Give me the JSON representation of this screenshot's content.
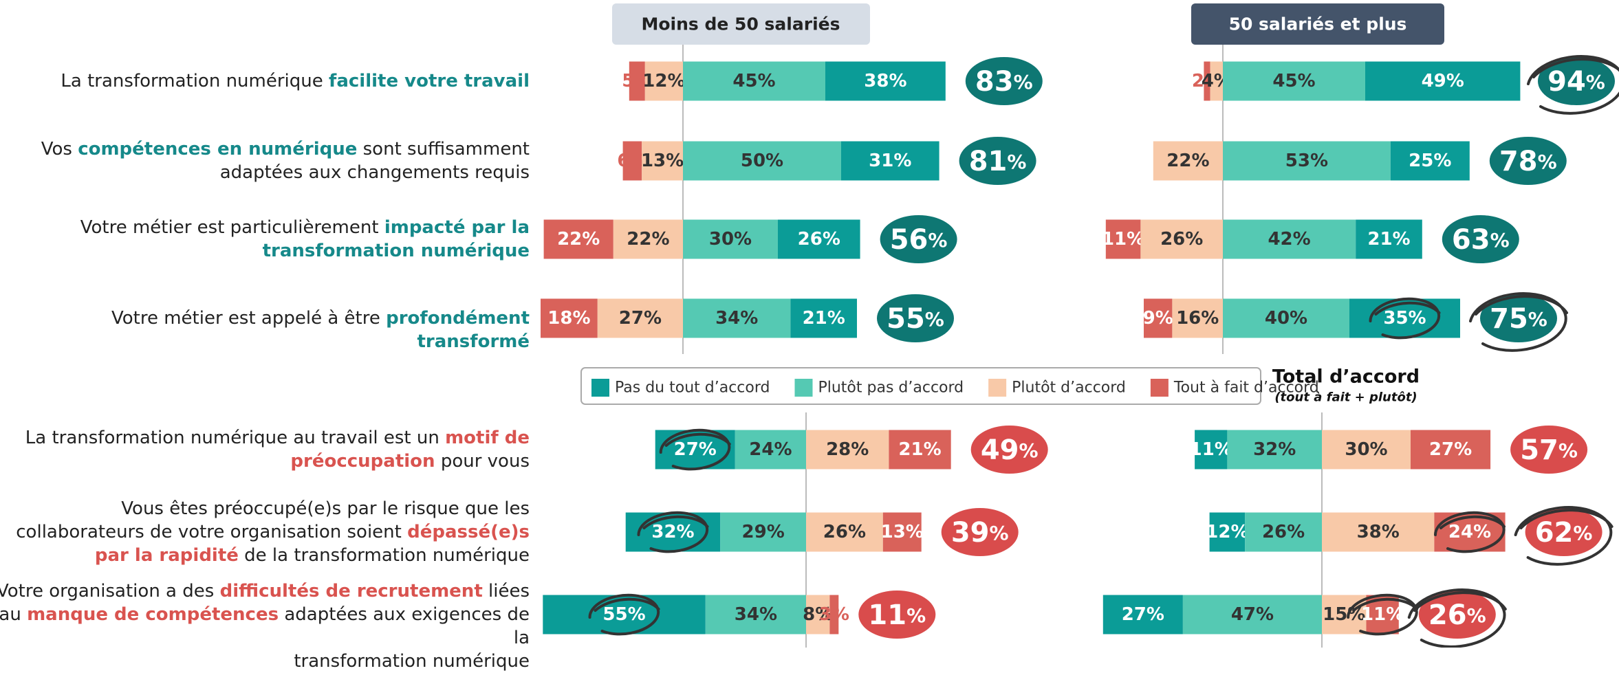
{
  "chart_data": {
    "type": "bar",
    "categories": [
      [
        [
          {
            "text": "La transformation numérique "
          },
          {
            "text": "facilite votre travail",
            "bold": true
          }
        ]
      ],
      [
        [
          {
            "text": "Vos "
          },
          {
            "text": "compétences en numérique",
            "bold": true
          },
          {
            "text": " sont suffisamment"
          }
        ],
        [
          {
            "text": "adaptées aux changements requis"
          }
        ]
      ],
      [
        [
          {
            "text": "Votre métier est particulièrement "
          },
          {
            "text": "impacté par la",
            "bold": true
          }
        ],
        [
          {
            "text": "transformation numérique",
            "bold": true
          }
        ]
      ],
      [
        [
          {
            "text": "Votre métier est appelé à être "
          },
          {
            "text": "profondément transformé",
            "bold": true
          }
        ]
      ],
      [
        [
          {
            "text": "La transformation numérique au travail est un "
          },
          {
            "text": "motif de",
            "bold": true
          }
        ],
        [
          {
            "text": "préoccupation",
            "bold": true
          },
          {
            "text": " pour vous"
          }
        ]
      ],
      [
        [
          {
            "text": "Vous êtes préoccupé(e)s par le risque que les"
          }
        ],
        [
          {
            "text": "collaborateurs de votre organisation soient "
          },
          {
            "text": "dépassé(e)s",
            "bold": true
          }
        ],
        [
          {
            "text": "par la rapidité",
            "bold": true
          },
          {
            "text": " de la transformation numérique"
          }
        ]
      ],
      [
        [
          {
            "text": "Votre organisation a des "
          },
          {
            "text": "difficultés de recrutement",
            "bold": true
          },
          {
            "text": " liées"
          }
        ],
        [
          {
            "text": "au "
          },
          {
            "text": "manque de compétences",
            "bold": true
          },
          {
            "text": " adaptées aux exigences de la"
          }
        ],
        [
          {
            "text": "transformation numérique"
          }
        ]
      ]
    ],
    "highlight_colors": [
      "#16898a",
      "#16898a",
      "#16898a",
      "#16898a",
      "#d9534f",
      "#d9534f",
      "#d9534f"
    ],
    "total_colors": [
      "#0e7773",
      "#0e7773",
      "#0e7773",
      "#0e7773",
      "#d94c4c",
      "#d94c4c",
      "#d94c4c"
    ],
    "reverse": [
      true,
      true,
      true,
      true,
      false,
      false,
      false
    ],
    "series": [
      {
        "name": "Pas du tout d’accord",
        "color": "#0b9c97"
      },
      {
        "name": "Plutôt pas d’accord",
        "color": "#55c9b3"
      },
      {
        "name": "Plutôt d’accord",
        "color": "#f8c9a8"
      },
      {
        "name": "Tout à fait d’accord",
        "color": "#d9625a"
      }
    ],
    "total_title": "Total d’accord",
    "total_subtitle": "(tout à fait + plutôt)",
    "panels": [
      {
        "title": "Moins de 50 salariés",
        "series": [
          {
            "values": [
              38,
              31,
              26,
              21,
              27,
              32,
              55
            ],
            "value_labels": [
              "38%",
              "31%",
              "26%",
              "21%",
              "27%",
              "32%",
              "55%"
            ]
          },
          {
            "values": [
              45,
              50,
              30,
              34,
              24,
              29,
              34
            ],
            "value_labels": [
              "45%",
              "50%",
              "30%",
              "34%",
              "24%",
              "29%",
              "34%"
            ]
          },
          {
            "values": [
              12,
              13,
              22,
              27,
              28,
              26,
              8
            ],
            "value_labels": [
              "12%",
              "13%",
              "22%",
              "27%",
              "28%",
              "26%",
              "8%"
            ]
          },
          {
            "values": [
              5,
              6,
              22,
              18,
              21,
              13,
              3
            ],
            "value_labels": [
              "5%",
              "6%",
              "22%",
              "18%",
              "21%",
              "13%",
              "3%"
            ]
          }
        ],
        "totals": [
          83,
          81,
          56,
          55,
          49,
          39,
          11
        ],
        "total_labels": [
          "83%",
          "81%",
          "56%",
          "55%",
          "49%",
          "39%",
          "11%"
        ]
      },
      {
        "title": "50 salariés et plus",
        "series": [
          {
            "values": [
              49,
              25,
              21,
              35,
              11,
              12,
              27
            ],
            "value_labels": [
              "49%",
              "25%",
              "21%",
              "35%",
              "11%",
              "12%",
              "27%"
            ]
          },
          {
            "values": [
              45,
              53,
              42,
              40,
              32,
              26,
              47
            ],
            "value_labels": [
              "45%",
              "53%",
              "42%",
              "40%",
              "32%",
              "26%",
              "47%"
            ]
          },
          {
            "values": [
              4,
              22,
              26,
              16,
              30,
              38,
              15
            ],
            "value_labels": [
              "4%",
              "22%",
              "26%",
              "16%",
              "30%",
              "38%",
              "15%"
            ]
          },
          {
            "values": [
              2,
              null,
              11,
              9,
              27,
              24,
              11
            ],
            "value_labels": [
              "2%",
              null,
              "11%",
              "9%",
              "27%",
              "24%",
              "11%"
            ]
          }
        ],
        "totals": [
          94,
          78,
          63,
          75,
          57,
          62,
          26
        ],
        "total_labels": [
          "94%",
          "78%",
          "63%",
          "75%",
          "57%",
          "62%",
          "26%"
        ]
      }
    ]
  }
}
